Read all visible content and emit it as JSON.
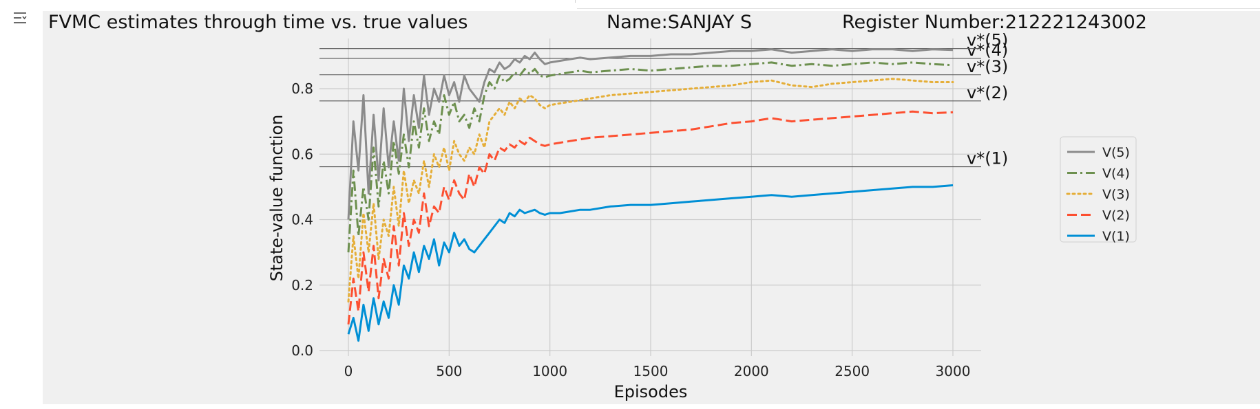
{
  "titles": {
    "left": "FVMC estimates through time vs. true values",
    "name": "Name:SANJAY S",
    "register": "Register Number:212221243002"
  },
  "chart_data": {
    "type": "line",
    "xlabel": "Episodes",
    "ylabel": "State-value function",
    "xlim": [
      -130,
      3140
    ],
    "ylim": [
      -0.02,
      0.945
    ],
    "x_ticks": [
      "0",
      "500",
      "1000",
      "1500",
      "2000",
      "2500",
      "3000"
    ],
    "y_ticks": [
      "0.0",
      "0.2",
      "0.4",
      "0.6",
      "0.8"
    ],
    "grid": true,
    "legend_position": "right",
    "true_values": [
      {
        "label": "v*(1)",
        "value": 0.5615
      },
      {
        "label": "v*(2)",
        "value": 0.7625
      },
      {
        "label": "v*(3)",
        "value": 0.8425
      },
      {
        "label": "v*(4)",
        "value": 0.8925
      },
      {
        "label": "v*(5)",
        "value": 0.9225
      }
    ],
    "series": [
      {
        "name": "V(5)",
        "color": "#8b8b8b",
        "dash": "solid",
        "x": [
          0,
          25,
          50,
          75,
          100,
          125,
          150,
          175,
          200,
          225,
          250,
          275,
          300,
          325,
          350,
          375,
          400,
          425,
          450,
          475,
          500,
          525,
          550,
          575,
          600,
          625,
          650,
          675,
          700,
          725,
          750,
          775,
          800,
          825,
          850,
          875,
          900,
          925,
          950,
          975,
          1000,
          1050,
          1100,
          1150,
          1200,
          1300,
          1400,
          1500,
          1600,
          1700,
          1800,
          1900,
          2000,
          2100,
          2200,
          2300,
          2400,
          2500,
          2600,
          2700,
          2800,
          2900,
          3000
        ],
        "y": [
          0.4,
          0.7,
          0.55,
          0.78,
          0.48,
          0.72,
          0.52,
          0.74,
          0.56,
          0.7,
          0.58,
          0.8,
          0.64,
          0.78,
          0.68,
          0.84,
          0.72,
          0.8,
          0.76,
          0.84,
          0.78,
          0.82,
          0.76,
          0.84,
          0.8,
          0.78,
          0.76,
          0.82,
          0.86,
          0.85,
          0.88,
          0.86,
          0.87,
          0.89,
          0.88,
          0.9,
          0.89,
          0.91,
          0.89,
          0.875,
          0.88,
          0.885,
          0.89,
          0.895,
          0.89,
          0.895,
          0.9,
          0.9,
          0.905,
          0.905,
          0.91,
          0.915,
          0.915,
          0.92,
          0.91,
          0.915,
          0.92,
          0.915,
          0.92,
          0.92,
          0.915,
          0.92,
          0.918
        ]
      },
      {
        "name": "V(4)",
        "color": "#6d904f",
        "dash": "dashdot",
        "x": [
          0,
          25,
          50,
          75,
          100,
          125,
          150,
          175,
          200,
          225,
          250,
          275,
          300,
          325,
          350,
          375,
          400,
          425,
          450,
          475,
          500,
          525,
          550,
          575,
          600,
          625,
          650,
          675,
          700,
          725,
          750,
          775,
          800,
          825,
          850,
          875,
          900,
          925,
          950,
          975,
          1000,
          1050,
          1100,
          1150,
          1200,
          1300,
          1400,
          1500,
          1600,
          1700,
          1800,
          1900,
          2000,
          2100,
          2200,
          2300,
          2400,
          2500,
          2600,
          2700,
          2800,
          2900,
          3000
        ],
        "y": [
          0.3,
          0.55,
          0.35,
          0.5,
          0.4,
          0.62,
          0.44,
          0.58,
          0.48,
          0.64,
          0.54,
          0.66,
          0.56,
          0.7,
          0.62,
          0.74,
          0.64,
          0.7,
          0.66,
          0.78,
          0.72,
          0.76,
          0.7,
          0.72,
          0.68,
          0.74,
          0.7,
          0.78,
          0.82,
          0.8,
          0.84,
          0.82,
          0.83,
          0.85,
          0.84,
          0.86,
          0.845,
          0.86,
          0.84,
          0.835,
          0.84,
          0.845,
          0.85,
          0.855,
          0.85,
          0.855,
          0.86,
          0.855,
          0.86,
          0.865,
          0.87,
          0.87,
          0.875,
          0.88,
          0.87,
          0.875,
          0.87,
          0.875,
          0.88,
          0.875,
          0.88,
          0.875,
          0.872
        ]
      },
      {
        "name": "V(3)",
        "color": "#e5ae38",
        "dash": "dotted",
        "x": [
          0,
          25,
          50,
          75,
          100,
          125,
          150,
          175,
          200,
          225,
          250,
          275,
          300,
          325,
          350,
          375,
          400,
          425,
          450,
          475,
          500,
          525,
          550,
          575,
          600,
          625,
          650,
          675,
          700,
          725,
          750,
          775,
          800,
          825,
          850,
          875,
          900,
          925,
          950,
          975,
          1000,
          1050,
          1100,
          1150,
          1200,
          1300,
          1400,
          1500,
          1600,
          1700,
          1800,
          1900,
          2000,
          2100,
          2200,
          2300,
          2400,
          2500,
          2600,
          2700,
          2800,
          2900,
          3000
        ],
        "y": [
          0.15,
          0.35,
          0.22,
          0.42,
          0.3,
          0.45,
          0.28,
          0.4,
          0.35,
          0.5,
          0.38,
          0.55,
          0.45,
          0.52,
          0.48,
          0.58,
          0.5,
          0.6,
          0.56,
          0.62,
          0.55,
          0.64,
          0.6,
          0.58,
          0.62,
          0.6,
          0.66,
          0.62,
          0.7,
          0.72,
          0.74,
          0.72,
          0.76,
          0.74,
          0.77,
          0.76,
          0.78,
          0.77,
          0.75,
          0.74,
          0.75,
          0.755,
          0.76,
          0.765,
          0.77,
          0.78,
          0.785,
          0.79,
          0.795,
          0.8,
          0.805,
          0.81,
          0.82,
          0.825,
          0.81,
          0.805,
          0.815,
          0.82,
          0.825,
          0.83,
          0.825,
          0.82,
          0.82
        ]
      },
      {
        "name": "V(2)",
        "color": "#fc4f30",
        "dash": "dashed",
        "x": [
          0,
          25,
          50,
          75,
          100,
          125,
          150,
          175,
          200,
          225,
          250,
          275,
          300,
          325,
          350,
          375,
          400,
          425,
          450,
          475,
          500,
          525,
          550,
          575,
          600,
          625,
          650,
          675,
          700,
          725,
          750,
          775,
          800,
          825,
          850,
          875,
          900,
          925,
          950,
          975,
          1000,
          1050,
          1100,
          1150,
          1200,
          1300,
          1400,
          1500,
          1600,
          1700,
          1800,
          1900,
          2000,
          2100,
          2200,
          2300,
          2400,
          2500,
          2600,
          2700,
          2800,
          2900,
          3000
        ],
        "y": [
          0.08,
          0.22,
          0.12,
          0.3,
          0.18,
          0.32,
          0.16,
          0.28,
          0.22,
          0.38,
          0.26,
          0.42,
          0.32,
          0.4,
          0.36,
          0.48,
          0.38,
          0.44,
          0.42,
          0.5,
          0.46,
          0.52,
          0.48,
          0.46,
          0.54,
          0.5,
          0.56,
          0.54,
          0.6,
          0.58,
          0.62,
          0.61,
          0.63,
          0.62,
          0.64,
          0.63,
          0.65,
          0.64,
          0.63,
          0.625,
          0.63,
          0.635,
          0.64,
          0.645,
          0.65,
          0.655,
          0.66,
          0.665,
          0.67,
          0.675,
          0.685,
          0.695,
          0.7,
          0.71,
          0.7,
          0.705,
          0.71,
          0.715,
          0.72,
          0.725,
          0.73,
          0.725,
          0.728
        ]
      },
      {
        "name": "V(1)",
        "color": "#008fd5",
        "dash": "solid",
        "x": [
          0,
          25,
          50,
          75,
          100,
          125,
          150,
          175,
          200,
          225,
          250,
          275,
          300,
          325,
          350,
          375,
          400,
          425,
          450,
          475,
          500,
          525,
          550,
          575,
          600,
          625,
          650,
          675,
          700,
          725,
          750,
          775,
          800,
          825,
          850,
          875,
          900,
          925,
          950,
          975,
          1000,
          1050,
          1100,
          1150,
          1200,
          1300,
          1400,
          1500,
          1600,
          1700,
          1800,
          1900,
          2000,
          2100,
          2200,
          2300,
          2400,
          2500,
          2600,
          2700,
          2800,
          2900,
          3000
        ],
        "y": [
          0.05,
          0.1,
          0.03,
          0.14,
          0.06,
          0.16,
          0.08,
          0.15,
          0.1,
          0.2,
          0.14,
          0.26,
          0.22,
          0.3,
          0.24,
          0.32,
          0.28,
          0.34,
          0.26,
          0.33,
          0.3,
          0.36,
          0.32,
          0.34,
          0.31,
          0.3,
          0.32,
          0.34,
          0.36,
          0.38,
          0.4,
          0.39,
          0.42,
          0.41,
          0.43,
          0.42,
          0.425,
          0.43,
          0.42,
          0.415,
          0.42,
          0.42,
          0.425,
          0.43,
          0.43,
          0.44,
          0.445,
          0.445,
          0.45,
          0.455,
          0.46,
          0.465,
          0.47,
          0.475,
          0.47,
          0.475,
          0.48,
          0.485,
          0.49,
          0.495,
          0.5,
          0.5,
          0.505
        ]
      }
    ]
  }
}
